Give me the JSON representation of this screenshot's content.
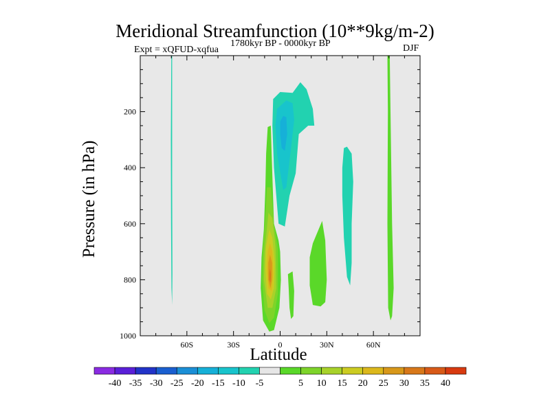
{
  "chart_data": {
    "type": "contour-filled",
    "title": "Meridional Streamfunction (10**9kg/m-2)",
    "left_label": "Expt = xQFUD-xqfua",
    "center_label": "1780kyr BP - 0000kyr BP",
    "season_label": "DJF",
    "xlabel": "Latitude",
    "ylabel": "Pressure (in hPa)",
    "xlim": [
      -90,
      90
    ],
    "ylim": [
      1000,
      0
    ],
    "background": "#e8e8e8",
    "x_ticks": [
      {
        "value": -60,
        "label": "60S"
      },
      {
        "value": -30,
        "label": "30S"
      },
      {
        "value": 0,
        "label": "0"
      },
      {
        "value": 30,
        "label": "30N"
      },
      {
        "value": 60,
        "label": "60N"
      }
    ],
    "y_ticks": [
      {
        "value": 200,
        "label": "200"
      },
      {
        "value": 400,
        "label": "400"
      },
      {
        "value": 600,
        "label": "600"
      },
      {
        "value": 800,
        "label": "800"
      },
      {
        "value": 1000,
        "label": "1000"
      }
    ],
    "colorbar": {
      "colors": [
        "#8a2be2",
        "#5a1fd8",
        "#2233c8",
        "#1a5fd0",
        "#1b8fd6",
        "#16b0d8",
        "#18c4cc",
        "#22d2b0",
        "#e6e6e6",
        "#5ad829",
        "#7ed42a",
        "#a8d22a",
        "#cccc22",
        "#dcb81c",
        "#d8981a",
        "#d8781a",
        "#d85a18",
        "#d83a10"
      ],
      "labels": [
        "-40",
        "-35",
        "-30",
        "-25",
        "-20",
        "-15",
        "-10",
        "-5",
        "5",
        "10",
        "15",
        "20",
        "25",
        "30",
        "35",
        "40"
      ]
    },
    "regions": [
      {
        "name": "thin-negative-60s",
        "color": "#22d2b0",
        "points": [
          [
            -70,
            0
          ],
          [
            -69.5,
            0
          ],
          [
            -69.5,
            450
          ],
          [
            -69.3,
            780
          ],
          [
            -69.5,
            890
          ],
          [
            -69.9,
            830
          ],
          [
            -70.2,
            600
          ],
          [
            -70.3,
            300
          ]
        ]
      },
      {
        "name": "upper-negative-cell-outer",
        "color": "#22d2b0",
        "points": [
          [
            -4.5,
            155
          ],
          [
            0,
            130
          ],
          [
            8,
            133
          ],
          [
            13,
            95
          ],
          [
            17,
            120
          ],
          [
            21,
            190
          ],
          [
            22,
            250
          ],
          [
            18,
            250
          ],
          [
            12,
            280
          ],
          [
            10,
            420
          ],
          [
            6,
            500
          ],
          [
            3,
            610
          ],
          [
            -1,
            600
          ],
          [
            -4,
            400
          ],
          [
            -5,
            250
          ]
        ]
      },
      {
        "name": "upper-negative-cell-mid",
        "color": "#18c4cc",
        "points": [
          [
            -2,
            190
          ],
          [
            4,
            160
          ],
          [
            8,
            170
          ],
          [
            9,
            230
          ],
          [
            7,
            330
          ],
          [
            4,
            470
          ],
          [
            2,
            480
          ],
          [
            -2,
            350
          ],
          [
            -3,
            250
          ]
        ]
      },
      {
        "name": "upper-negative-cell-core",
        "color": "#16b0d8",
        "points": [
          [
            0,
            235
          ],
          [
            2,
            215
          ],
          [
            4,
            220
          ],
          [
            4.5,
            280
          ],
          [
            3,
            340
          ],
          [
            1,
            330
          ],
          [
            0,
            280
          ]
        ]
      },
      {
        "name": "negative-cell-40n",
        "color": "#22d2b0",
        "points": [
          [
            41,
            330
          ],
          [
            43,
            325
          ],
          [
            46,
            350
          ],
          [
            47,
            450
          ],
          [
            46,
            600
          ],
          [
            46,
            740
          ],
          [
            45,
            820
          ],
          [
            43,
            790
          ],
          [
            41,
            650
          ],
          [
            40,
            500
          ],
          [
            40,
            400
          ]
        ]
      },
      {
        "name": "positive-cell-outer",
        "color": "#5ad829",
        "points": [
          [
            -8,
            255
          ],
          [
            -6,
            250
          ],
          [
            -5.5,
            350
          ],
          [
            -4,
            600
          ],
          [
            -1,
            660
          ],
          [
            0,
            700
          ],
          [
            0.5,
            800
          ],
          [
            -0.5,
            900
          ],
          [
            -4,
            980
          ],
          [
            -7,
            985
          ],
          [
            -11,
            945
          ],
          [
            -12.5,
            830
          ],
          [
            -12,
            720
          ],
          [
            -10.5,
            620
          ],
          [
            -9.5,
            470
          ],
          [
            -9,
            350
          ]
        ]
      },
      {
        "name": "positive-cell-l10",
        "color": "#7ed42a",
        "points": [
          [
            -8.5,
            470
          ],
          [
            -6,
            470
          ],
          [
            -4,
            600
          ],
          [
            -1.5,
            690
          ],
          [
            -1.5,
            850
          ],
          [
            -4,
            935
          ],
          [
            -7,
            955
          ],
          [
            -10,
            910
          ],
          [
            -11.5,
            800
          ],
          [
            -11,
            690
          ],
          [
            -9.5,
            580
          ]
        ]
      },
      {
        "name": "positive-cell-l15",
        "color": "#a8d22a",
        "points": [
          [
            -7.5,
            560
          ],
          [
            -5,
            580
          ],
          [
            -3,
            680
          ],
          [
            -2.5,
            830
          ],
          [
            -5,
            900
          ],
          [
            -8,
            900
          ],
          [
            -10.5,
            800
          ],
          [
            -10,
            700
          ]
        ]
      },
      {
        "name": "positive-cell-l20",
        "color": "#cccc22",
        "points": [
          [
            -7,
            620
          ],
          [
            -5,
            650
          ],
          [
            -3.5,
            740
          ],
          [
            -4,
            830
          ],
          [
            -6,
            870
          ],
          [
            -8.5,
            850
          ],
          [
            -9.5,
            760
          ],
          [
            -9,
            680
          ]
        ]
      },
      {
        "name": "positive-cell-l25",
        "color": "#dcb81c",
        "points": [
          [
            -6.5,
            670
          ],
          [
            -5,
            700
          ],
          [
            -4.5,
            780
          ],
          [
            -5.5,
            840
          ],
          [
            -7.5,
            830
          ],
          [
            -8.5,
            760
          ],
          [
            -8,
            700
          ]
        ]
      },
      {
        "name": "positive-cell-l30",
        "color": "#d8981a",
        "points": [
          [
            -6.5,
            710
          ],
          [
            -5.2,
            740
          ],
          [
            -5.3,
            800
          ],
          [
            -6.3,
            830
          ],
          [
            -7.6,
            800
          ],
          [
            -7.6,
            740
          ]
        ]
      },
      {
        "name": "positive-cell-l35",
        "color": "#d8781a",
        "points": [
          [
            -6.5,
            760
          ],
          [
            -5.9,
            780
          ],
          [
            -6.2,
            810
          ],
          [
            -7,
            800
          ],
          [
            -7,
            775
          ]
        ]
      },
      {
        "name": "positive-cell-5n-small",
        "color": "#5ad829",
        "points": [
          [
            5,
            780
          ],
          [
            8,
            770
          ],
          [
            9,
            840
          ],
          [
            8.5,
            930
          ],
          [
            7,
            940
          ],
          [
            6,
            900
          ],
          [
            5.5,
            830
          ]
        ]
      },
      {
        "name": "positive-cell-20n",
        "color": "#5ad829",
        "points": [
          [
            24,
            630
          ],
          [
            27,
            590
          ],
          [
            29,
            660
          ],
          [
            30,
            800
          ],
          [
            29,
            880
          ],
          [
            26,
            895
          ],
          [
            21,
            890
          ],
          [
            19,
            820
          ],
          [
            19,
            720
          ],
          [
            21,
            670
          ]
        ]
      },
      {
        "name": "positive-cell-70n",
        "color": "#5ad829",
        "points": [
          [
            69,
            0
          ],
          [
            70.5,
            0
          ],
          [
            71,
            200
          ],
          [
            72,
            600
          ],
          [
            73,
            830
          ],
          [
            72,
            930
          ],
          [
            71,
            945
          ],
          [
            69.5,
            900
          ],
          [
            69,
            600
          ],
          [
            69.3,
            200
          ]
        ]
      }
    ]
  }
}
